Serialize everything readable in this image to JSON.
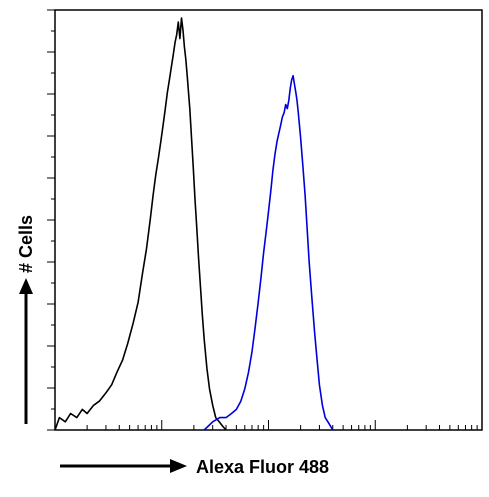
{
  "chart_data": {
    "type": "line",
    "title": "",
    "xlabel": "Alexa Fluor 488",
    "ylabel": "# Cells",
    "xscale": "log",
    "xlim": [
      1,
      10000
    ],
    "ylim": [
      0,
      100
    ],
    "grid": false,
    "legend": "none",
    "series": [
      {
        "color": "#000000",
        "x": [
          1,
          1.1,
          1.25,
          1.4,
          1.6,
          1.8,
          2.0,
          2.3,
          2.6,
          3.0,
          3.4,
          3.8,
          4.3,
          4.8,
          5.4,
          6.0,
          6.6,
          7.2,
          7.8,
          8.3,
          8.8,
          9.3,
          9.8,
          10.3,
          10.8,
          11.3,
          11.8,
          12.3,
          12.8,
          13.3,
          13.8,
          14.3,
          14.8,
          15.3,
          15.8,
          16.3,
          16.8,
          17.3,
          17.8,
          18.3,
          19.0,
          19.7,
          20.5,
          21.3,
          22.1,
          23.0,
          24.0,
          25.0,
          26.5,
          28.0,
          30.0,
          32.0,
          34.5,
          37.0,
          40.0
        ],
        "y": [
          0,
          3,
          2,
          4,
          3,
          5,
          4,
          6,
          7,
          9,
          11,
          14,
          17,
          21,
          26,
          31,
          38,
          44,
          51,
          57,
          62,
          66,
          70,
          74,
          78,
          82,
          85,
          88,
          91,
          94,
          96,
          99,
          95,
          100,
          97,
          93,
          90,
          86,
          82,
          78,
          71,
          64,
          56,
          49,
          42,
          35,
          28,
          22,
          15,
          10,
          6,
          3,
          2,
          1,
          0
        ]
      },
      {
        "color": "#0000dd",
        "x": [
          25,
          30,
          35,
          40,
          45,
          50,
          55,
          60,
          65,
          70,
          75,
          80,
          85,
          90,
          95,
          100,
          105,
          110,
          115,
          120,
          125,
          130,
          135,
          140,
          145,
          150,
          155,
          160,
          165,
          170,
          175,
          180,
          185,
          190,
          200,
          210,
          220,
          230,
          240,
          255,
          270,
          285,
          300,
          320,
          340,
          360,
          380,
          400
        ],
        "y": [
          0,
          2,
          3,
          3,
          4,
          5,
          7,
          10,
          14,
          19,
          25,
          31,
          37,
          43,
          48,
          53,
          58,
          63,
          67,
          70,
          72,
          74,
          76,
          77,
          79,
          78,
          80,
          83,
          85,
          86,
          84,
          82,
          80,
          77,
          71,
          64,
          57,
          49,
          41,
          32,
          24,
          17,
          11,
          6,
          3,
          2,
          1,
          0
        ]
      }
    ]
  }
}
